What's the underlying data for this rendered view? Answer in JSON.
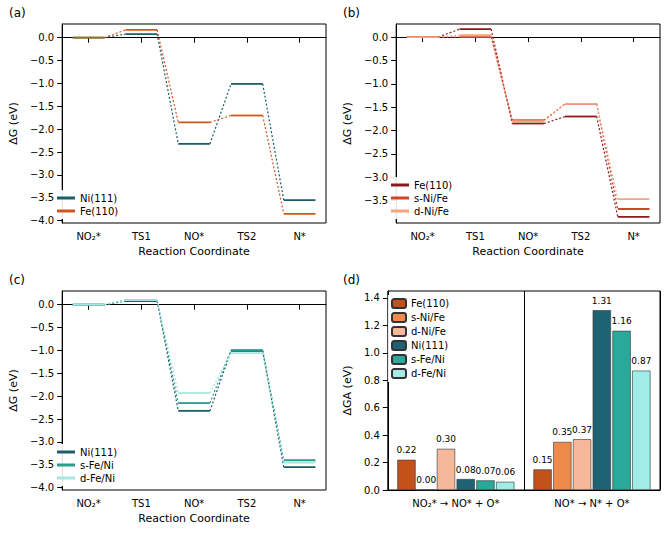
{
  "chart_data": [
    {
      "type": "energy_profile",
      "title": "(a)",
      "x_label": "Reaction Coordinate",
      "y_label": "ΔG (eV)",
      "categories": [
        "NO₂*",
        "TS1",
        "NO*",
        "TS2",
        "N*"
      ],
      "series": [
        {
          "name": "Ni(111)",
          "color": "#1d5c6a",
          "values": [
            0,
            0.08,
            -2.32,
            -1.01,
            -3.55
          ]
        },
        {
          "name": "Fe(110)",
          "color": "#d1561c",
          "values": [
            0,
            0.17,
            -1.85,
            -1.7,
            -3.85
          ]
        }
      ],
      "ylim": [
        -4.05,
        0.3
      ],
      "yticks": [
        {
          "value": -4,
          "label": "−4.0"
        },
        {
          "value": -3.5,
          "label": "−3.5"
        },
        {
          "value": -3,
          "label": "−3.0"
        },
        {
          "value": -2.5,
          "label": "−2.5"
        },
        {
          "value": -2,
          "label": "−2.0"
        },
        {
          "value": -1.5,
          "label": "−1.5"
        },
        {
          "value": -1,
          "label": "−1.0"
        },
        {
          "value": -0.5,
          "label": "−0.5"
        },
        {
          "value": 0,
          "label": "0.0"
        }
      ],
      "grid": false,
      "legend": "lower left",
      "line_style": "dotted"
    },
    {
      "type": "energy_profile",
      "title": "(b)",
      "x_label": "Reaction Coordinate",
      "y_label": "ΔG (eV)",
      "categories": [
        "NO₂*",
        "TS1",
        "NO*",
        "TS2",
        "N*"
      ],
      "series": [
        {
          "name": "Fe(110)",
          "color": "#8b1a1a",
          "values": [
            0,
            0.17,
            -1.85,
            -1.7,
            -3.85
          ]
        },
        {
          "name": "s-Ni/Fe",
          "color": "#d0452a",
          "values": [
            0,
            0.0,
            -1.78,
            -1.43,
            -3.68
          ]
        },
        {
          "name": "d-Ni/Fe",
          "color": "#f4a582",
          "values": [
            0,
            0.04,
            -1.8,
            -1.43,
            -3.47
          ]
        }
      ],
      "ylim": [
        -3.98,
        0.28
      ],
      "yticks": [
        {
          "value": -3.5,
          "label": "−3.5"
        },
        {
          "value": -3,
          "label": "−3.0"
        },
        {
          "value": -2.5,
          "label": "−2.5"
        },
        {
          "value": -2,
          "label": "−2.0"
        },
        {
          "value": -1.5,
          "label": "−1.5"
        },
        {
          "value": -1,
          "label": "−1.0"
        },
        {
          "value": -0.5,
          "label": "−0.5"
        },
        {
          "value": 0,
          "label": "0.0"
        }
      ],
      "grid": false,
      "legend": "lower left",
      "line_style": "dotted"
    },
    {
      "type": "energy_profile",
      "title": "(c)",
      "x_label": "Reaction Coordinate",
      "y_label": "ΔG (eV)",
      "categories": [
        "NO₂*",
        "TS1",
        "NO*",
        "TS2",
        "N*"
      ],
      "series": [
        {
          "name": "Ni(111)",
          "color": "#1d5c6a",
          "values": [
            0,
            0.08,
            -2.32,
            -1.01,
            -3.55
          ]
        },
        {
          "name": "s-Fe/Ni",
          "color": "#2a9d8f",
          "values": [
            0,
            0.1,
            -2.15,
            -0.99,
            -3.4
          ]
        },
        {
          "name": "d-Fe/Ni",
          "color": "#a8e6e0",
          "values": [
            0,
            0.1,
            -1.93,
            -1.06,
            -3.45
          ]
        }
      ],
      "ylim": [
        -4.05,
        0.3
      ],
      "yticks": [
        {
          "value": -4,
          "label": "−4.0"
        },
        {
          "value": -3.5,
          "label": "−3.5"
        },
        {
          "value": -3,
          "label": "−3.0"
        },
        {
          "value": -2.5,
          "label": "−2.5"
        },
        {
          "value": -2,
          "label": "−2.0"
        },
        {
          "value": -1.5,
          "label": "−1.5"
        },
        {
          "value": -1,
          "label": "−1.0"
        },
        {
          "value": -0.5,
          "label": "−0.5"
        },
        {
          "value": 0,
          "label": "0.0"
        }
      ],
      "grid": false,
      "legend": "lower left",
      "line_style": "dotted"
    },
    {
      "type": "bar",
      "title": "(d)",
      "y_label": "ΔGA (eV)",
      "categories": [
        "NO₂* → NO* + O*",
        "NO* → N* + O*"
      ],
      "series": [
        {
          "name": "Fe(110)",
          "color": "#c2521a",
          "values": [
            0.22,
            0.15
          ],
          "value_labels": [
            "0.22",
            "0.15"
          ]
        },
        {
          "name": "s-Ni/Fe",
          "color": "#f08a4b",
          "values": [
            0.0,
            0.35
          ],
          "value_labels": [
            "0.00",
            "0.35"
          ]
        },
        {
          "name": "d-Ni/Fe",
          "color": "#f5b89a",
          "values": [
            0.3,
            0.37
          ],
          "value_labels": [
            "0.30",
            "0.37"
          ]
        },
        {
          "name": "Ni(111)",
          "color": "#1f6273",
          "values": [
            0.08,
            1.31
          ],
          "value_labels": [
            "0.08",
            "1.31"
          ]
        },
        {
          "name": "s-Fe/Ni",
          "color": "#2aa89a",
          "values": [
            0.07,
            1.16
          ],
          "value_labels": [
            "0.07",
            "1.16"
          ]
        },
        {
          "name": "d-Fe/Ni",
          "color": "#a0ece6",
          "values": [
            0.06,
            0.87
          ],
          "value_labels": [
            "0.06",
            "0.87"
          ]
        }
      ],
      "ylim": [
        0,
        1.45
      ],
      "yticks": [
        {
          "value": 0,
          "label": "0.0"
        },
        0.2,
        0.4,
        0.6,
        0.8,
        {
          "value": 1,
          "label": "1.0"
        },
        1.2,
        1.4
      ],
      "grid": false,
      "legend": "upper left",
      "data_labels": true
    }
  ]
}
